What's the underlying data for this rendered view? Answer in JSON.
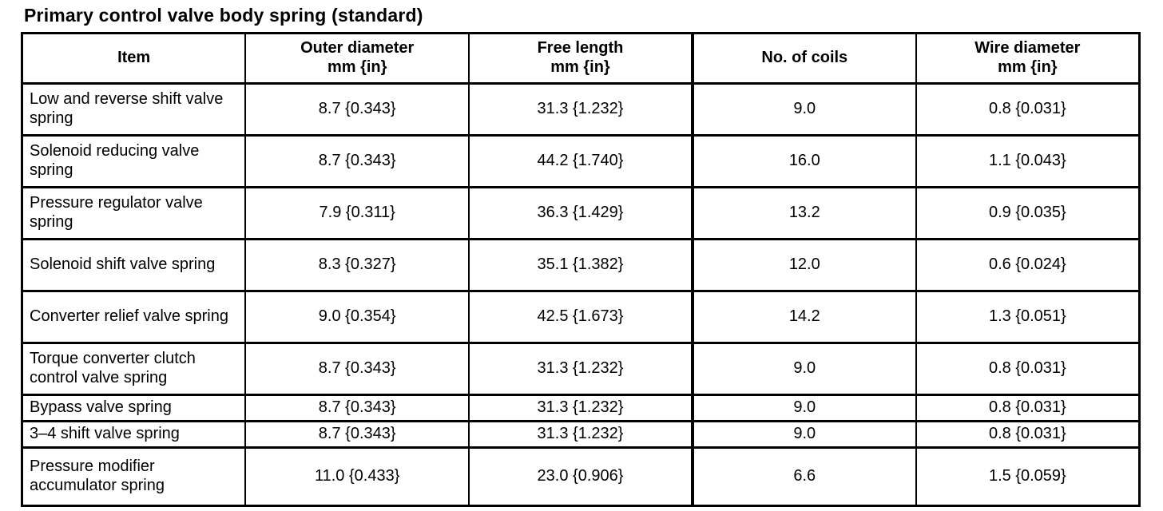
{
  "title": "Primary control valve body spring (standard)",
  "table": {
    "columns": [
      {
        "label": "Item"
      },
      {
        "label": "Outer diameter",
        "unit": "mm {in}"
      },
      {
        "label": "Free length",
        "unit": "mm {in}"
      },
      {
        "label": "No. of coils"
      },
      {
        "label": "Wire diameter",
        "unit": "mm {in}"
      }
    ],
    "rows": [
      {
        "item": "Low and reverse shift valve spring",
        "outer_diameter": "8.7 {0.343}",
        "free_length": "31.3 {1.232}",
        "no_of_coils": "9.0",
        "wire_diameter": "0.8 {0.031}"
      },
      {
        "item": "Solenoid reducing valve spring",
        "outer_diameter": "8.7 {0.343}",
        "free_length": "44.2 {1.740}",
        "no_of_coils": "16.0",
        "wire_diameter": "1.1 {0.043}"
      },
      {
        "item": "Pressure regulator valve spring",
        "outer_diameter": "7.9 {0.311}",
        "free_length": "36.3 {1.429}",
        "no_of_coils": "13.2",
        "wire_diameter": "0.9 {0.035}"
      },
      {
        "item": "Solenoid shift valve spring",
        "outer_diameter": "8.3 {0.327}",
        "free_length": "35.1 {1.382}",
        "no_of_coils": "12.0",
        "wire_diameter": "0.6 {0.024}"
      },
      {
        "item": "Converter relief valve spring",
        "outer_diameter": "9.0 {0.354}",
        "free_length": "42.5 {1.673}",
        "no_of_coils": "14.2",
        "wire_diameter": "1.3 {0.051}"
      },
      {
        "item": "Torque converter clutch control valve spring",
        "outer_diameter": "8.7 {0.343}",
        "free_length": "31.3 {1.232}",
        "no_of_coils": "9.0",
        "wire_diameter": "0.8 {0.031}"
      },
      {
        "item": "Bypass valve spring",
        "outer_diameter": "8.7 {0.343}",
        "free_length": "31.3 {1.232}",
        "no_of_coils": "9.0",
        "wire_diameter": "0.8 {0.031}"
      },
      {
        "item": "3–4 shift valve spring",
        "outer_diameter": "8.7 {0.343}",
        "free_length": "31.3 {1.232}",
        "no_of_coils": "9.0",
        "wire_diameter": "0.8 {0.031}"
      },
      {
        "item": "Pressure modifier accumulator spring",
        "outer_diameter": "11.0 {0.433}",
        "free_length": "23.0 {0.906}",
        "no_of_coils": "6.6",
        "wire_diameter": "1.5 {0.059}"
      }
    ]
  }
}
